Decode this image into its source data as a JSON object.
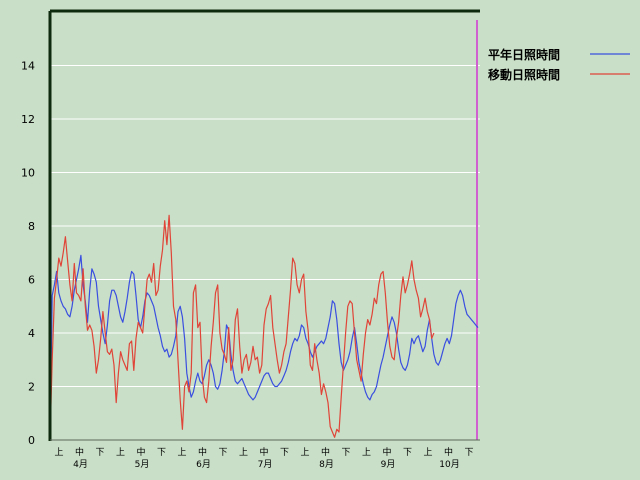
{
  "chart_data": {
    "type": "line",
    "title": "",
    "xlabel": "",
    "ylabel": "",
    "ylim": [
      0,
      16
    ],
    "yticks": [
      0,
      2,
      4,
      6,
      8,
      10,
      12,
      14
    ],
    "grid": true,
    "legend_position": "top-right",
    "x_period_labels": [
      "上",
      "中",
      "下"
    ],
    "month_labels": [
      "4月",
      "5月",
      "6月",
      "7月",
      "8月",
      "9月",
      "10月"
    ],
    "series": [
      {
        "name": "平年日照時間",
        "color": "#3a4fe0",
        "values": [
          0,
          5.4,
          5.8,
          6.3,
          5.5,
          5.2,
          5.0,
          4.9,
          4.7,
          4.6,
          5.0,
          5.6,
          6.0,
          6.4,
          6.9,
          5.8,
          5.2,
          4.4,
          5.6,
          6.4,
          6.2,
          5.9,
          5.0,
          4.5,
          4.0,
          3.6,
          4.3,
          5.2,
          5.6,
          5.6,
          5.4,
          5.0,
          4.6,
          4.4,
          4.8,
          5.3,
          5.9,
          6.3,
          6.2,
          5.4,
          4.5,
          4.2,
          4.6,
          5.2,
          5.5,
          5.4,
          5.2,
          5.0,
          4.6,
          4.2,
          3.9,
          3.5,
          3.3,
          3.4,
          3.1,
          3.2,
          3.5,
          3.9,
          4.8,
          5.0,
          4.6,
          3.8,
          2.5,
          2.0,
          1.6,
          1.8,
          2.2,
          2.5,
          2.2,
          2.1,
          2.4,
          2.8,
          3.0,
          2.8,
          2.5,
          2.0,
          1.9,
          2.1,
          2.6,
          3.3,
          4.3,
          4.1,
          3.2,
          2.6,
          2.2,
          2.1,
          2.2,
          2.3,
          2.1,
          1.9,
          1.7,
          1.6,
          1.5,
          1.6,
          1.8,
          2.0,
          2.2,
          2.4,
          2.5,
          2.5,
          2.3,
          2.1,
          2.0,
          2.0,
          2.1,
          2.2,
          2.4,
          2.6,
          2.9,
          3.3,
          3.6,
          3.8,
          3.7,
          3.9,
          4.3,
          4.2,
          3.8,
          3.6,
          3.3,
          3.1,
          3.3,
          3.5,
          3.6,
          3.7,
          3.6,
          3.8,
          4.2,
          4.6,
          5.2,
          5.1,
          4.5,
          3.6,
          2.9,
          2.6,
          2.8,
          3.0,
          3.3,
          3.8,
          4.2,
          3.6,
          2.9,
          2.5,
          2.1,
          1.8,
          1.6,
          1.5,
          1.7,
          1.8,
          2.0,
          2.4,
          2.8,
          3.1,
          3.5,
          3.9,
          4.3,
          4.6,
          4.4,
          4.0,
          3.4,
          2.9,
          2.7,
          2.6,
          2.8,
          3.2,
          3.8,
          3.6,
          3.8,
          3.9,
          3.6,
          3.3,
          3.5,
          4.1,
          4.5,
          3.8,
          3.2,
          2.9,
          2.8,
          3.0,
          3.3,
          3.6,
          3.8,
          3.6,
          3.9,
          4.5,
          5.1,
          5.4,
          5.6,
          5.4,
          5.0,
          4.7,
          4.6,
          4.5,
          4.4,
          4.3,
          4.2
        ]
      },
      {
        "name": "移動日照時間",
        "color": "#e04438",
        "values": [
          0,
          3.0,
          5.3,
          6.0,
          6.8,
          6.5,
          7.0,
          7.6,
          6.7,
          5.8,
          5.2,
          6.6,
          5.5,
          5.4,
          5.2,
          6.4,
          5.0,
          4.1,
          4.3,
          4.1,
          3.5,
          2.5,
          3.0,
          3.8,
          4.8,
          4.0,
          3.3,
          3.2,
          3.4,
          2.8,
          1.4,
          2.5,
          3.3,
          3.0,
          2.8,
          2.6,
          3.6,
          3.7,
          2.6,
          3.8,
          4.4,
          4.2,
          4.0,
          5.0,
          6.0,
          6.2,
          5.9,
          6.6,
          5.4,
          5.6,
          6.5,
          7.1,
          8.2,
          7.3,
          8.4,
          7.0,
          5.0,
          4.5,
          3.0,
          1.5,
          0.4,
          2.0,
          2.2,
          1.8,
          2.5,
          5.5,
          5.8,
          4.2,
          4.4,
          2.4,
          1.6,
          1.4,
          2.2,
          3.5,
          4.4,
          5.5,
          5.8,
          4.0,
          3.4,
          3.2,
          2.9,
          4.2,
          2.6,
          3.0,
          4.5,
          4.9,
          3.5,
          2.5,
          3.0,
          3.2,
          2.6,
          2.9,
          3.5,
          3.0,
          3.1,
          2.5,
          2.8,
          4.3,
          4.9,
          5.1,
          5.4,
          4.2,
          3.6,
          3.0,
          2.5,
          2.8,
          3.3,
          3.6,
          4.6,
          5.6,
          6.8,
          6.6,
          5.8,
          5.5,
          6.0,
          6.2,
          4.8,
          4.1,
          2.8,
          2.6,
          3.6,
          3.0,
          2.5,
          1.7,
          2.1,
          1.8,
          1.4,
          0.5,
          0.3,
          0.1,
          0.4,
          0.3,
          1.6,
          2.8,
          4.0,
          5.0,
          5.2,
          5.1,
          4.0,
          3.0,
          2.6,
          2.2,
          3.2,
          4.0,
          4.5,
          4.3,
          4.7,
          5.3,
          5.1,
          5.8,
          6.2,
          6.3,
          5.5,
          4.4,
          3.5,
          3.1,
          3.0,
          3.8,
          4.4,
          5.4,
          6.1,
          5.5,
          5.8,
          6.2,
          6.7,
          6.0,
          5.6,
          5.3,
          4.6,
          4.9,
          5.3,
          4.8,
          4.5,
          3.8,
          4.0
        ]
      }
    ]
  }
}
